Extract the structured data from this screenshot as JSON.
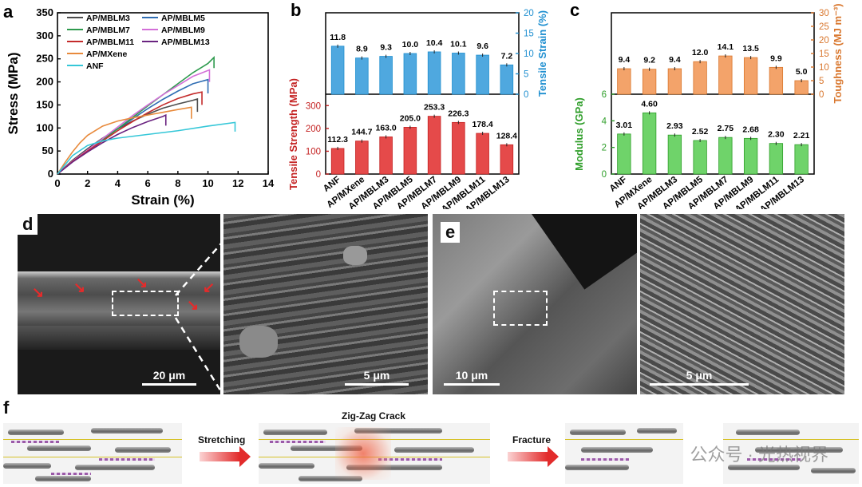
{
  "panels": {
    "a": "a",
    "b": "b",
    "c": "c",
    "d": "d",
    "e": "e",
    "f": "f"
  },
  "colors": {
    "AP/MBLM3": "#4d4d4d",
    "AP/MBLM5": "#2f6db3",
    "AP/MBLM7": "#2e9a4e",
    "AP/MBLM9": "#d36fd8",
    "AP/MBLM11": "#c42b2b",
    "AP/MBLM13": "#6a2380",
    "AP/MXene": "#e88a3c",
    "ANF": "#35c7d8",
    "strain_bar": "#4fa8df",
    "strength_bar": "#e54a4a",
    "toughness_bar": "#f3a36a",
    "modulus_bar": "#6fd36a"
  },
  "chart_data": [
    {
      "id": "a",
      "type": "line",
      "xlabel": "Strain (%)",
      "ylabel": "Stress (MPa)",
      "xlim": [
        0,
        14
      ],
      "ylim": [
        0,
        350
      ],
      "xticks": [
        0,
        2,
        4,
        6,
        8,
        10,
        12,
        14
      ],
      "yticks": [
        0,
        50,
        100,
        150,
        200,
        250,
        300,
        350
      ],
      "legend": [
        "AP/MBLM3",
        "AP/MBLM5",
        "AP/MBLM7",
        "AP/MBLM9",
        "AP/MBLM11",
        "AP/MBLM13",
        "AP/MXene",
        "ANF"
      ],
      "series": [
        {
          "name": "AP/MBLM3",
          "points": [
            [
              0,
              0
            ],
            [
              1,
              30
            ],
            [
              2,
              55
            ],
            [
              3,
              78
            ],
            [
              4,
              98
            ],
            [
              5,
              115
            ],
            [
              6,
              130
            ],
            [
              7,
              143
            ],
            [
              8,
              152
            ],
            [
              9,
              160
            ],
            [
              9.3,
              163
            ]
          ],
          "drop_to": 135
        },
        {
          "name": "AP/MBLM5",
          "points": [
            [
              0,
              0
            ],
            [
              1,
              28
            ],
            [
              2,
              52
            ],
            [
              3,
              76
            ],
            [
              4,
              98
            ],
            [
              5,
              120
            ],
            [
              6,
              142
            ],
            [
              7,
              162
            ],
            [
              8,
              180
            ],
            [
              9,
              196
            ],
            [
              10,
              205
            ]
          ],
          "drop_to": 175
        },
        {
          "name": "AP/MBLM7",
          "points": [
            [
              0,
              0
            ],
            [
              1,
              27
            ],
            [
              2,
              50
            ],
            [
              3,
              74
            ],
            [
              4,
              98
            ],
            [
              5,
              123
            ],
            [
              6,
              148
            ],
            [
              7,
              172
            ],
            [
              8,
              196
            ],
            [
              9,
              220
            ],
            [
              10,
              240
            ],
            [
              10.4,
              253
            ]
          ],
          "drop_to": 230
        },
        {
          "name": "AP/MBLM9",
          "points": [
            [
              0,
              0
            ],
            [
              1,
              28
            ],
            [
              2,
              52
            ],
            [
              3,
              77
            ],
            [
              4,
              102
            ],
            [
              5,
              127
            ],
            [
              6,
              150
            ],
            [
              7,
              172
            ],
            [
              8,
              192
            ],
            [
              9,
              212
            ],
            [
              10.1,
              226
            ]
          ],
          "drop_to": 200
        },
        {
          "name": "AP/MBLM11",
          "points": [
            [
              0,
              0
            ],
            [
              1,
              27
            ],
            [
              2,
              50
            ],
            [
              3,
              72
            ],
            [
              4,
              94
            ],
            [
              5,
              114
            ],
            [
              6,
              133
            ],
            [
              7,
              150
            ],
            [
              8,
              164
            ],
            [
              9,
              174
            ],
            [
              9.6,
              178
            ]
          ],
          "drop_to": 150
        },
        {
          "name": "AP/MBLM13",
          "points": [
            [
              0,
              0
            ],
            [
              1,
              26
            ],
            [
              2,
              48
            ],
            [
              3,
              68
            ],
            [
              4,
              86
            ],
            [
              5,
              101
            ],
            [
              6,
              114
            ],
            [
              7,
              125
            ],
            [
              7.2,
              128
            ]
          ],
          "drop_to": 105
        },
        {
          "name": "AP/MXene",
          "points": [
            [
              0,
              0
            ],
            [
              0.5,
              25
            ],
            [
              1,
              48
            ],
            [
              1.5,
              68
            ],
            [
              2,
              84
            ],
            [
              3,
              104
            ],
            [
              4,
              115
            ],
            [
              5,
              122
            ],
            [
              6,
              128
            ],
            [
              7,
              134
            ],
            [
              8,
              140
            ],
            [
              8.9,
              145
            ]
          ],
          "drop_to": 120
        },
        {
          "name": "ANF",
          "points": [
            [
              0,
              0
            ],
            [
              1,
              40
            ],
            [
              2,
              62
            ],
            [
              3,
              72
            ],
            [
              4,
              78
            ],
            [
              6,
              86
            ],
            [
              8,
              94
            ],
            [
              10,
              104
            ],
            [
              11.8,
              112
            ]
          ],
          "drop_to": 92
        }
      ]
    },
    {
      "id": "b-top",
      "type": "bar",
      "ylabel": "Tensile Strain (%)",
      "ylim": [
        0,
        20
      ],
      "yticks": [
        0,
        5,
        10,
        15,
        20
      ],
      "categories": [
        "ANF",
        "AP/MXene",
        "AP/MBLM3",
        "AP/MBLM5",
        "AP/MBLM7",
        "AP/MBLM9",
        "AP/MBLM11",
        "AP/MBLM13"
      ],
      "values": [
        11.8,
        8.9,
        9.3,
        10.0,
        10.4,
        10.1,
        9.6,
        7.2
      ],
      "labels": [
        "11.8",
        "8.9",
        "9.3",
        "10.0",
        "10.4",
        "10.1",
        "9.6",
        "7.2"
      ]
    },
    {
      "id": "b-bottom",
      "type": "bar",
      "ylabel": "Tensile Strength (MPa)",
      "ylim": [
        0,
        350
      ],
      "yticks": [
        0,
        100,
        200,
        300
      ],
      "categories": [
        "ANF",
        "AP/MXene",
        "AP/MBLM3",
        "AP/MBLM5",
        "AP/MBLM7",
        "AP/MBLM9",
        "AP/MBLM11",
        "AP/MBLM13"
      ],
      "values": [
        112.3,
        144.7,
        163.0,
        205.0,
        253.3,
        226.3,
        178.4,
        128.4
      ],
      "labels": [
        "112.3",
        "144.7",
        "163.0",
        "205.0",
        "253.3",
        "226.3",
        "178.4",
        "128.4"
      ]
    },
    {
      "id": "c-top",
      "type": "bar",
      "ylabel": "Toughness (MJ m⁻³)",
      "ylim": [
        0,
        30
      ],
      "yticks": [
        0,
        5,
        10,
        15,
        20,
        25,
        30
      ],
      "categories": [
        "ANF",
        "AP/MXene",
        "AP/MBLM3",
        "AP/MBLM5",
        "AP/MBLM7",
        "AP/MBLM9",
        "AP/MBLM11",
        "AP/MBLM13"
      ],
      "values": [
        9.4,
        9.2,
        9.4,
        12.0,
        14.1,
        13.5,
        9.9,
        5.0
      ],
      "labels": [
        "9.4",
        "9.2",
        "9.4",
        "12.0",
        "14.1",
        "13.5",
        "9.9",
        "5.0"
      ]
    },
    {
      "id": "c-bottom",
      "type": "bar",
      "ylabel": "Modulus (GPa)",
      "ylim": [
        0,
        6
      ],
      "yticks": [
        0,
        2,
        4,
        6
      ],
      "categories": [
        "ANF",
        "AP/MXene",
        "AP/MBLM3",
        "AP/MBLM5",
        "AP/MBLM7",
        "AP/MBLM9",
        "AP/MBLM11",
        "AP/MBLM13"
      ],
      "values": [
        3.01,
        4.6,
        2.93,
        2.52,
        2.75,
        2.68,
        2.3,
        2.21
      ],
      "labels": [
        "3.01",
        "4.60",
        "2.93",
        "2.52",
        "2.75",
        "2.68",
        "2.30",
        "2.21"
      ]
    }
  ],
  "scalebars": {
    "d1": "20 μm",
    "d2": "5 μm",
    "e1": "10 μm",
    "e2": "5 μm"
  },
  "schematic": {
    "stretching": "Stretching",
    "zigzag": "Zig-Zag Crack",
    "fracture": "Fracture"
  },
  "watermark": "公众号 · 光热视界"
}
